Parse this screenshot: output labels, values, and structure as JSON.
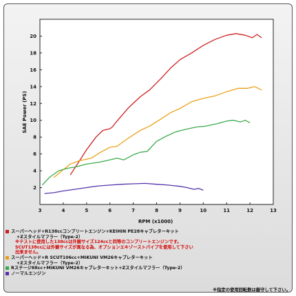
{
  "chart_data": {
    "type": "line",
    "xlabel": "RPM (x1000)",
    "ylabel": "SAE Power (PS)",
    "xlim": [
      3,
      13
    ],
    "ylim": [
      0,
      22
    ],
    "xticks": [
      3,
      4,
      5,
      6,
      7,
      8,
      9,
      10,
      11,
      12,
      13
    ],
    "yticks": [
      2,
      4,
      6,
      8,
      10,
      12,
      14,
      16,
      18,
      20
    ],
    "grid": false,
    "series": [
      {
        "color": "#cc1f1f",
        "x": [
          4.3,
          4.7,
          5.0,
          5.4,
          5.7,
          6.0,
          6.1,
          6.3,
          6.8,
          7.3,
          7.7,
          8.2,
          8.6,
          9.0,
          9.5,
          10.0,
          10.5,
          11.0,
          11.4,
          11.8,
          12.1,
          12.3,
          12.5
        ],
        "y": [
          3.5,
          5.2,
          6.5,
          8.0,
          8.8,
          9.0,
          9.2,
          9.9,
          11.5,
          12.8,
          13.6,
          15.0,
          16.2,
          17.2,
          18.0,
          18.9,
          19.6,
          20.1,
          20.3,
          20.1,
          19.8,
          20.2,
          19.8
        ]
      },
      {
        "color": "#eaa016",
        "x": [
          3.6,
          3.9,
          4.3,
          4.7,
          5.2,
          5.6,
          6.0,
          6.3,
          6.8,
          7.3,
          7.7,
          8.1,
          8.6,
          9.0,
          9.5,
          10.0,
          10.5,
          11.0,
          11.5,
          11.9,
          12.2,
          12.5
        ],
        "y": [
          3.2,
          3.9,
          4.8,
          5.2,
          5.5,
          6.2,
          6.8,
          6.9,
          7.9,
          8.8,
          9.3,
          10.0,
          10.9,
          11.4,
          12.2,
          12.6,
          12.9,
          13.4,
          13.8,
          13.8,
          14.0,
          13.6
        ]
      },
      {
        "color": "#3aaa4a",
        "x": [
          3.1,
          3.4,
          3.8,
          4.2,
          4.6,
          5.0,
          5.5,
          6.0,
          6.3,
          6.6,
          7.0,
          7.3,
          7.6,
          8.0,
          8.4,
          8.8,
          9.2,
          9.7,
          10.1,
          10.6,
          11.0,
          11.3,
          11.6,
          11.8,
          12.0
        ],
        "y": [
          2.3,
          3.2,
          4.0,
          4.3,
          4.5,
          4.8,
          5.0,
          5.3,
          5.5,
          5.3,
          5.9,
          6.2,
          6.3,
          7.5,
          8.1,
          8.6,
          8.9,
          9.2,
          9.3,
          9.6,
          9.9,
          10.0,
          9.8,
          10.0,
          9.7
        ]
      },
      {
        "color": "#5533aa",
        "x": [
          3.2,
          3.6,
          4.0,
          4.5,
          5.0,
          5.5,
          6.0,
          6.5,
          7.0,
          7.5,
          8.0,
          8.5,
          9.0,
          9.3,
          9.6,
          9.8,
          10.0
        ],
        "y": [
          1.3,
          1.4,
          1.6,
          1.8,
          2.0,
          2.2,
          2.3,
          2.4,
          2.45,
          2.5,
          2.4,
          2.3,
          2.15,
          2.0,
          1.8,
          1.9,
          1.7
        ]
      }
    ]
  },
  "legend": [
    {
      "color": "#cc1f1f",
      "lines": [
        "スーパーヘッド+R138ccコンプリートエンジン+KEIHIN PE28キャブレターキット",
        "+Zスタイルマフラー（Type-2）"
      ],
      "notes": [
        "※テストに使用した138ccは外観サイズ124ccと同等のコンプリートエンジンです。",
        "SCUT138ccには外観サイズが異なる為、オプションエキゾーストパイプを使用して下さい",
        "出来ません。"
      ]
    },
    {
      "color": "#eaa016",
      "lines": [
        "スーパーヘッド+R SCUT106cc+MIKUNI VM26キャブレターキット",
        "+Zスタイルマフラー（Type-2）"
      ],
      "notes": []
    },
    {
      "color": "#3aaa4a",
      "lines": [
        "Rステージ88cc+MIKUNI VM26キャブレターキット+Zスタイルマフラー（Type-2）"
      ],
      "notes": []
    },
    {
      "color": "#5533aa",
      "lines": [
        "ノーマルエンジン"
      ],
      "notes": []
    }
  ],
  "footnote": "※指定の使用回転数は厳守して下さい。"
}
